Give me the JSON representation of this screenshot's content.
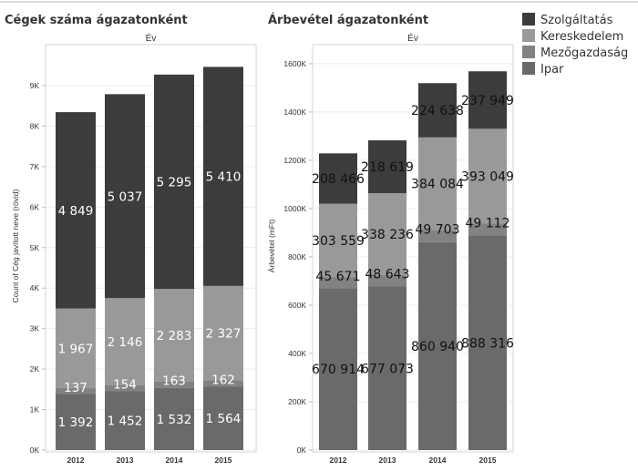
{
  "legend": {
    "items": [
      {
        "label": "Szolgáltatás",
        "color": "#3c3c3c"
      },
      {
        "label": "Kereskedelem",
        "color": "#999999"
      },
      {
        "label": "Mezőgazdaság",
        "color": "#828282"
      },
      {
        "label": "Ipar",
        "color": "#6a6a6a"
      }
    ]
  },
  "chart_data": [
    {
      "type": "bar",
      "stacked": true,
      "title": "Cégek száma ágazatonként",
      "column_header": "Év",
      "ylabel": "Count of Cég javított neve (rövid)",
      "xlabel": "",
      "categories": [
        "2012",
        "2013",
        "2014",
        "2015"
      ],
      "ylim": [
        0,
        9900
      ],
      "yticks": [
        0,
        1000,
        2000,
        3000,
        4000,
        5000,
        6000,
        7000,
        8000,
        9000
      ],
      "ytick_labels": [
        "0K",
        "1K",
        "2K",
        "3K",
        "4K",
        "5K",
        "6K",
        "7K",
        "8K",
        "9K"
      ],
      "grid": true,
      "series": [
        {
          "name": "Ipar",
          "values": [
            1392,
            1452,
            1532,
            1564
          ],
          "labels": [
            "1 392",
            "1 452",
            "1 532",
            "1 564"
          ]
        },
        {
          "name": "Mezőgazdaság",
          "values": [
            137,
            154,
            163,
            162
          ],
          "labels": [
            "137",
            "154",
            "163",
            "162"
          ]
        },
        {
          "name": "Kereskedelem",
          "values": [
            1967,
            2146,
            2283,
            2327
          ],
          "labels": [
            "1 967",
            "2 146",
            "2 283",
            "2 327"
          ]
        },
        {
          "name": "Szolgáltatás",
          "values": [
            4849,
            5037,
            5295,
            5410
          ],
          "labels": [
            "4 849",
            "5 037",
            "5 295",
            "5 410"
          ]
        }
      ]
    },
    {
      "type": "bar",
      "stacked": true,
      "title": "Árbevétel ágazatonként",
      "column_header": "Év",
      "ylabel": "Árbevétel (mFt)",
      "xlabel": "",
      "categories": [
        "2012",
        "2013",
        "2014",
        "2015"
      ],
      "ylim": [
        0,
        1660000
      ],
      "yticks": [
        0,
        200000,
        400000,
        600000,
        800000,
        1000000,
        1200000,
        1400000,
        1600000
      ],
      "ytick_labels": [
        "0K",
        "200K",
        "400K",
        "600K",
        "800K",
        "1000K",
        "1200K",
        "1400K",
        "1600K"
      ],
      "grid": true,
      "series": [
        {
          "name": "Ipar",
          "values": [
            670914,
            677073,
            860940,
            888316
          ],
          "labels": [
            "670 914",
            "677 073",
            "860 940",
            "888 316"
          ]
        },
        {
          "name": "Mezőgazdaság",
          "values": [
            45671,
            48643,
            49703,
            49112
          ],
          "labels": [
            "45 671",
            "48 643",
            "49 703",
            "49 112"
          ]
        },
        {
          "name": "Kereskedelem",
          "values": [
            303559,
            338236,
            384084,
            393049
          ],
          "labels": [
            "303 559",
            "338 236",
            "384 084",
            "393 049"
          ]
        },
        {
          "name": "Szolgáltatás",
          "values": [
            208466,
            218619,
            224638,
            237949
          ],
          "labels": [
            "208 466",
            "218 619",
            "224 638",
            "237 949"
          ]
        }
      ]
    }
  ]
}
